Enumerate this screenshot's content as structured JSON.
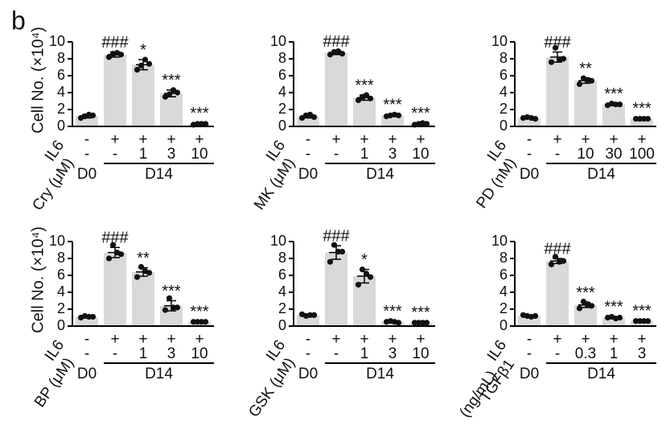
{
  "panel_label": "b",
  "chart_data": [
    {
      "type": "bar",
      "ylabel": "Cell No. (×10⁴)",
      "ylim": [
        0,
        10
      ],
      "yticks": [
        0,
        2,
        4,
        6,
        8,
        10
      ],
      "color": "#d9d9d9",
      "values": [
        1.2,
        8.5,
        7.3,
        3.9,
        0.3
      ],
      "errors": [
        0.2,
        0.3,
        0.6,
        0.4,
        0.1
      ],
      "points": [
        [
          1.0,
          1.2,
          1.4,
          1.3
        ],
        [
          8.2,
          8.6,
          8.7,
          8.5
        ],
        [
          6.7,
          7.2,
          7.9,
          7.4
        ],
        [
          3.5,
          3.8,
          4.3,
          4.0
        ],
        [
          0.2,
          0.3,
          0.3,
          0.3
        ]
      ],
      "annotations": [
        null,
        "###",
        "*",
        "***",
        "***"
      ],
      "rows": [
        {
          "label": "IL6",
          "values": [
            "-",
            "+",
            "+",
            "+",
            "+"
          ]
        },
        {
          "label": "Cry (μM)",
          "values": [
            "-",
            "-",
            "1",
            "3",
            "10"
          ]
        }
      ],
      "groups": [
        "D0",
        "D14"
      ]
    },
    {
      "type": "bar",
      "ylim": [
        0,
        10
      ],
      "yticks": [
        0,
        2,
        4,
        6,
        8,
        10
      ],
      "color": "#d9d9d9",
      "values": [
        1.2,
        8.7,
        3.4,
        1.3,
        0.3
      ],
      "errors": [
        0.2,
        0.2,
        0.3,
        0.1,
        0.1
      ],
      "points": [
        [
          1.0,
          1.3,
          1.4,
          1.1
        ],
        [
          8.5,
          8.8,
          8.9,
          8.6
        ],
        [
          3.1,
          3.5,
          3.7,
          3.3
        ],
        [
          1.2,
          1.3,
          1.4,
          1.3
        ],
        [
          0.2,
          0.3,
          0.4,
          0.3
        ]
      ],
      "annotations": [
        null,
        "###",
        "***",
        "***",
        "***"
      ],
      "rows": [
        {
          "label": "IL6",
          "values": [
            "-",
            "+",
            "+",
            "+",
            "+"
          ]
        },
        {
          "label": "MK (μM)",
          "values": [
            "-",
            "-",
            "1",
            "3",
            "10"
          ]
        }
      ],
      "groups": [
        "D0",
        "D14"
      ]
    },
    {
      "type": "bar",
      "ylim": [
        0,
        10
      ],
      "yticks": [
        0,
        2,
        4,
        6,
        8,
        10
      ],
      "color": "#d9d9d9",
      "values": [
        1.0,
        8.2,
        5.4,
        2.6,
        0.9
      ],
      "errors": [
        0.1,
        0.6,
        0.3,
        0.1,
        0.1
      ],
      "points": [
        [
          1.0,
          1.1,
          1.0,
          0.9
        ],
        [
          7.6,
          9.3,
          7.9,
          8.0
        ],
        [
          5.0,
          5.7,
          5.5,
          5.4
        ],
        [
          2.5,
          2.7,
          2.6,
          2.6
        ],
        [
          0.9,
          0.9,
          0.9,
          0.9
        ]
      ],
      "annotations": [
        null,
        "###",
        "**",
        "***",
        "***"
      ],
      "rows": [
        {
          "label": "IL6",
          "values": [
            "-",
            "+",
            "+",
            "+",
            "+"
          ]
        },
        {
          "label": "PD (nM)",
          "values": [
            "-",
            "-",
            "10",
            "30",
            "100"
          ]
        }
      ],
      "groups": [
        "D0",
        "D14"
      ]
    },
    {
      "type": "bar",
      "ylabel": "Cell No. (×10⁴)",
      "ylim": [
        0,
        10
      ],
      "yticks": [
        0,
        2,
        4,
        6,
        8,
        10
      ],
      "color": "#d9d9d9",
      "values": [
        1.1,
        8.7,
        6.4,
        2.4,
        0.5
      ],
      "errors": [
        0.1,
        0.6,
        0.5,
        0.6,
        0.05
      ],
      "points": [
        [
          1.0,
          1.2,
          1.1,
          1.1
        ],
        [
          8.0,
          9.6,
          8.7,
          8.5
        ],
        [
          5.8,
          7.0,
          6.5,
          6.3
        ],
        [
          1.9,
          3.3,
          2.2,
          2.2
        ],
        [
          0.5,
          0.5,
          0.5,
          0.5
        ]
      ],
      "annotations": [
        null,
        "###",
        "**",
        "***",
        "***"
      ],
      "rows": [
        {
          "label": "IL6",
          "values": [
            "-",
            "+",
            "+",
            "+",
            "+"
          ]
        },
        {
          "label": "BP (μM)",
          "values": [
            "-",
            "-",
            "1",
            "3",
            "10"
          ]
        }
      ],
      "groups": [
        "D0",
        "D14"
      ]
    },
    {
      "type": "bar",
      "ylim": [
        0,
        10
      ],
      "yticks": [
        0,
        2,
        4,
        6,
        8,
        10
      ],
      "color": "#d9d9d9",
      "values": [
        1.3,
        8.7,
        5.9,
        0.5,
        0.4
      ],
      "errors": [
        0.1,
        0.8,
        0.8,
        0.1,
        0.05
      ],
      "points": [
        [
          1.4,
          1.2,
          1.3,
          1.3
        ],
        [
          7.6,
          9.6,
          8.8,
          8.8
        ],
        [
          4.9,
          6.7,
          6.2,
          5.8
        ],
        [
          0.5,
          0.6,
          0.5,
          0.4
        ],
        [
          0.4,
          0.4,
          0.4,
          0.4
        ]
      ],
      "annotations": [
        null,
        "###",
        "*",
        "***",
        "***"
      ],
      "rows": [
        {
          "label": "IL6",
          "values": [
            "-",
            "+",
            "+",
            "+",
            "+"
          ]
        },
        {
          "label": "GSK (μM)",
          "values": [
            "-",
            "-",
            "1",
            "3",
            "10"
          ]
        }
      ],
      "groups": [
        "D0",
        "D14"
      ]
    },
    {
      "type": "bar",
      "ylim": [
        0,
        10
      ],
      "yticks": [
        0,
        2,
        4,
        6,
        8,
        10
      ],
      "color": "#d9d9d9",
      "values": [
        1.2,
        7.7,
        2.5,
        1.0,
        0.6
      ],
      "errors": [
        0.1,
        0.3,
        0.3,
        0.1,
        0.05
      ],
      "points": [
        [
          1.3,
          1.2,
          1.1,
          1.2
        ],
        [
          7.3,
          8.2,
          7.6,
          7.7
        ],
        [
          2.1,
          2.9,
          2.6,
          2.4
        ],
        [
          1.0,
          1.1,
          0.9,
          1.0
        ],
        [
          0.6,
          0.6,
          0.6,
          0.6
        ]
      ],
      "annotations": [
        null,
        "###",
        "***",
        "***",
        "***"
      ],
      "rows": [
        {
          "label": "IL6",
          "values": [
            "-",
            "+",
            "+",
            "+",
            "+"
          ]
        },
        {
          "label": [
            "TGFβ1",
            "(ng/mL)"
          ],
          "values": [
            "-",
            "-",
            "0.3",
            "1",
            "3"
          ]
        }
      ],
      "groups": [
        "D0",
        "D14"
      ]
    }
  ]
}
